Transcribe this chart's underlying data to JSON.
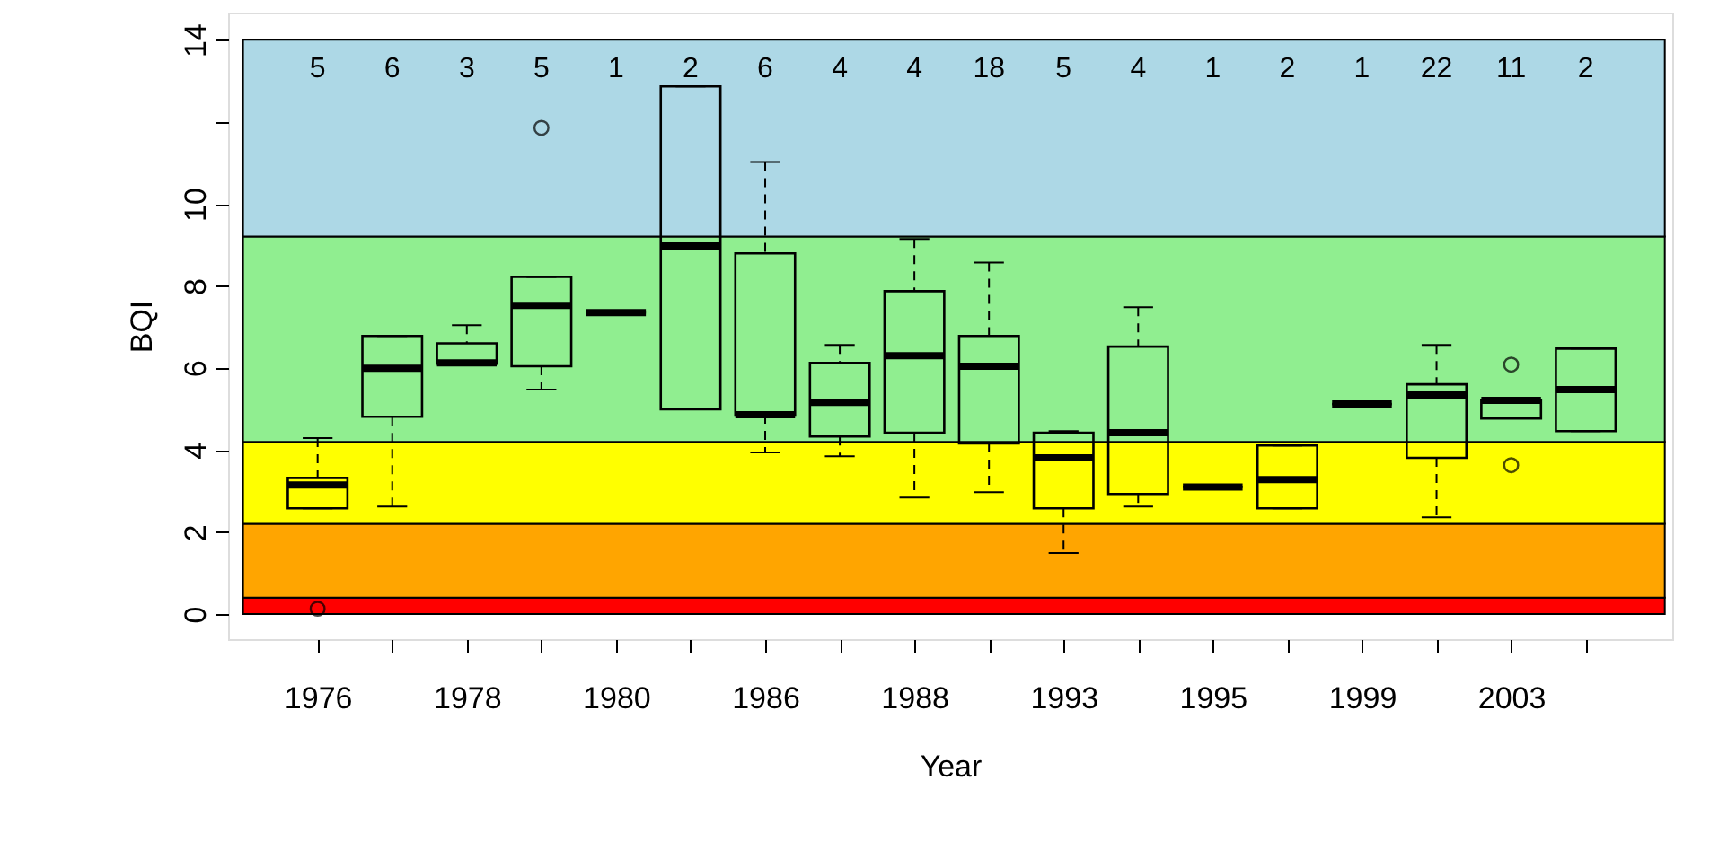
{
  "chart_data": {
    "type": "box",
    "xlabel": "Year",
    "ylabel": "BQI",
    "categories": [
      "1976",
      null,
      "1978",
      null,
      "1980",
      null,
      "1986",
      null,
      "1988",
      null,
      "1993",
      null,
      "1995",
      null,
      "1999",
      null,
      "2003",
      null
    ],
    "boxes": [
      {
        "low": 2.58,
        "q1": 2.58,
        "median": 3.15,
        "q3": 3.32,
        "high": 4.29,
        "outliers": [
          0.13
        ]
      },
      {
        "low": 2.62,
        "q1": 4.81,
        "median": 5.99,
        "q3": 6.78,
        "high": 6.78
      },
      {
        "low": 6.1,
        "q1": 6.1,
        "median": 6.12,
        "q3": 6.6,
        "high": 7.04
      },
      {
        "low": 5.47,
        "q1": 6.04,
        "median": 7.52,
        "q3": 8.22,
        "high": 8.22,
        "outliers": [
          11.85
        ]
      },
      {
        "low": 7.35,
        "q1": 7.35,
        "median": 7.35,
        "q3": 7.35,
        "high": 7.35
      },
      {
        "low": 4.99,
        "q1": 4.99,
        "median": 8.97,
        "q3": 12.86,
        "high": 12.86
      },
      {
        "low": 3.94,
        "q1": 4.86,
        "median": 4.86,
        "q3": 8.79,
        "high": 11.02
      },
      {
        "low": 3.85,
        "q1": 4.33,
        "median": 5.16,
        "q3": 6.12,
        "high": 6.56
      },
      {
        "low": 2.84,
        "q1": 4.42,
        "median": 6.3,
        "q3": 7.87,
        "high": 9.14
      },
      {
        "low": 2.97,
        "q1": 4.16,
        "median": 6.04,
        "q3": 6.78,
        "high": 8.57
      },
      {
        "low": 1.49,
        "q1": 2.58,
        "median": 3.81,
        "q3": 4.42,
        "high": 4.46
      },
      {
        "low": 2.62,
        "q1": 2.93,
        "median": 4.42,
        "q3": 6.52,
        "high": 7.48
      },
      {
        "low": 3.1,
        "q1": 3.1,
        "median": 3.1,
        "q3": 3.1,
        "high": 3.1
      },
      {
        "low": 2.58,
        "q1": 2.58,
        "median": 3.28,
        "q3": 4.11,
        "high": 4.11
      },
      {
        "low": 5.12,
        "q1": 5.12,
        "median": 5.12,
        "q3": 5.12,
        "high": 5.12
      },
      {
        "low": 2.36,
        "q1": 3.81,
        "median": 5.34,
        "q3": 5.6,
        "high": 6.56
      },
      {
        "low": 4.77,
        "q1": 4.77,
        "median": 5.21,
        "q3": 5.21,
        "high": 5.21,
        "outliers": [
          6.08,
          3.63
        ]
      },
      {
        "low": 4.46,
        "q1": 4.46,
        "median": 5.47,
        "q3": 6.47,
        "high": 6.47
      }
    ],
    "annotations": [
      "5",
      "6",
      "3",
      "5",
      "1",
      "2",
      "6",
      "4",
      "4",
      "18",
      "5",
      "4",
      "1",
      "2",
      "1",
      "22",
      "11",
      "2"
    ],
    "bands": [
      {
        "axis": "y",
        "from": 0,
        "to": 0.4,
        "color": "#ff0000"
      },
      {
        "axis": "y",
        "from": 0.4,
        "to": 2.2,
        "color": "#ffa500"
      },
      {
        "axis": "y",
        "from": 2.2,
        "to": 4.2,
        "color": "#ffff00"
      },
      {
        "axis": "y",
        "from": 4.2,
        "to": 9.2,
        "color": "#90ee90"
      },
      {
        "axis": "y",
        "from": 9.2,
        "to": 14,
        "color": "#add8e6"
      }
    ],
    "ylim": [
      -0.61,
      14.66
    ],
    "yticks": [
      0,
      2,
      4,
      6,
      8,
      10,
      {
        "value": 12,
        "label": null
      },
      14
    ],
    "grid": false
  }
}
